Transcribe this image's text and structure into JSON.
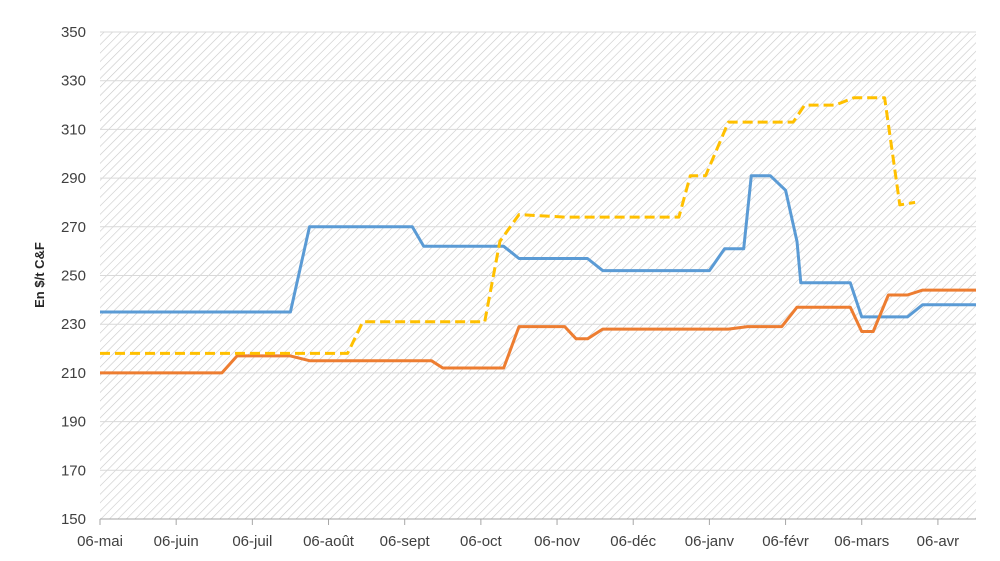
{
  "chart_data": {
    "type": "line",
    "title": "",
    "xlabel": "",
    "ylabel": "En $/t C&F",
    "ylim": [
      150,
      350
    ],
    "yticks": [
      150,
      170,
      190,
      210,
      230,
      250,
      270,
      290,
      310,
      330,
      350
    ],
    "x_range": [
      0,
      11.5
    ],
    "categories": [
      "06-mai",
      "06-juin",
      "06-juil",
      "06-août",
      "06-sept",
      "06-oct",
      "06-nov",
      "06-déc",
      "06-janv",
      "06-févr",
      "06-mars",
      "06-avr"
    ],
    "grid": true,
    "background": "hatched",
    "legend": "none",
    "series": [
      {
        "color": "#5B9BD5",
        "dash": "solid",
        "x": [
          0,
          2.5,
          2.75,
          4.1,
          4.25,
          5.3,
          5.5,
          6.4,
          6.6,
          8.0,
          8.2,
          8.45,
          8.55,
          8.8,
          9.0,
          9.15,
          9.2,
          9.85,
          10.0,
          10.6,
          10.8,
          11.5
        ],
        "y": [
          235,
          235,
          270,
          270,
          262,
          262,
          257,
          257,
          252,
          252,
          261,
          261,
          291,
          291,
          285,
          264,
          247,
          247,
          233,
          233,
          238,
          238
        ]
      },
      {
        "color": "#ED7D31",
        "dash": "solid",
        "x": [
          0,
          1.6,
          1.8,
          2.5,
          2.75,
          4.35,
          4.5,
          5.3,
          5.5,
          6.1,
          6.25,
          6.4,
          6.6,
          8.25,
          8.5,
          8.95,
          9.15,
          9.85,
          10.0,
          10.15,
          10.35,
          10.6,
          10.8,
          11.5
        ],
        "y": [
          210,
          210,
          217,
          217,
          215,
          215,
          212,
          212,
          229,
          229,
          224,
          224,
          228,
          228,
          229,
          229,
          237,
          237,
          227,
          227,
          242,
          242,
          244,
          244
        ]
      },
      {
        "color": "#FFC000",
        "dash": "dashed",
        "x": [
          0,
          3.25,
          3.45,
          5.05,
          5.25,
          5.5,
          6.1,
          7.6,
          7.75,
          7.95,
          8.25,
          9.1,
          9.25,
          9.65,
          9.9,
          10.3,
          10.5,
          10.7
        ],
        "y": [
          218,
          218,
          231,
          231,
          264,
          275,
          274,
          274,
          291,
          291,
          313,
          313,
          320,
          320,
          323,
          323,
          279,
          280
        ]
      }
    ]
  }
}
